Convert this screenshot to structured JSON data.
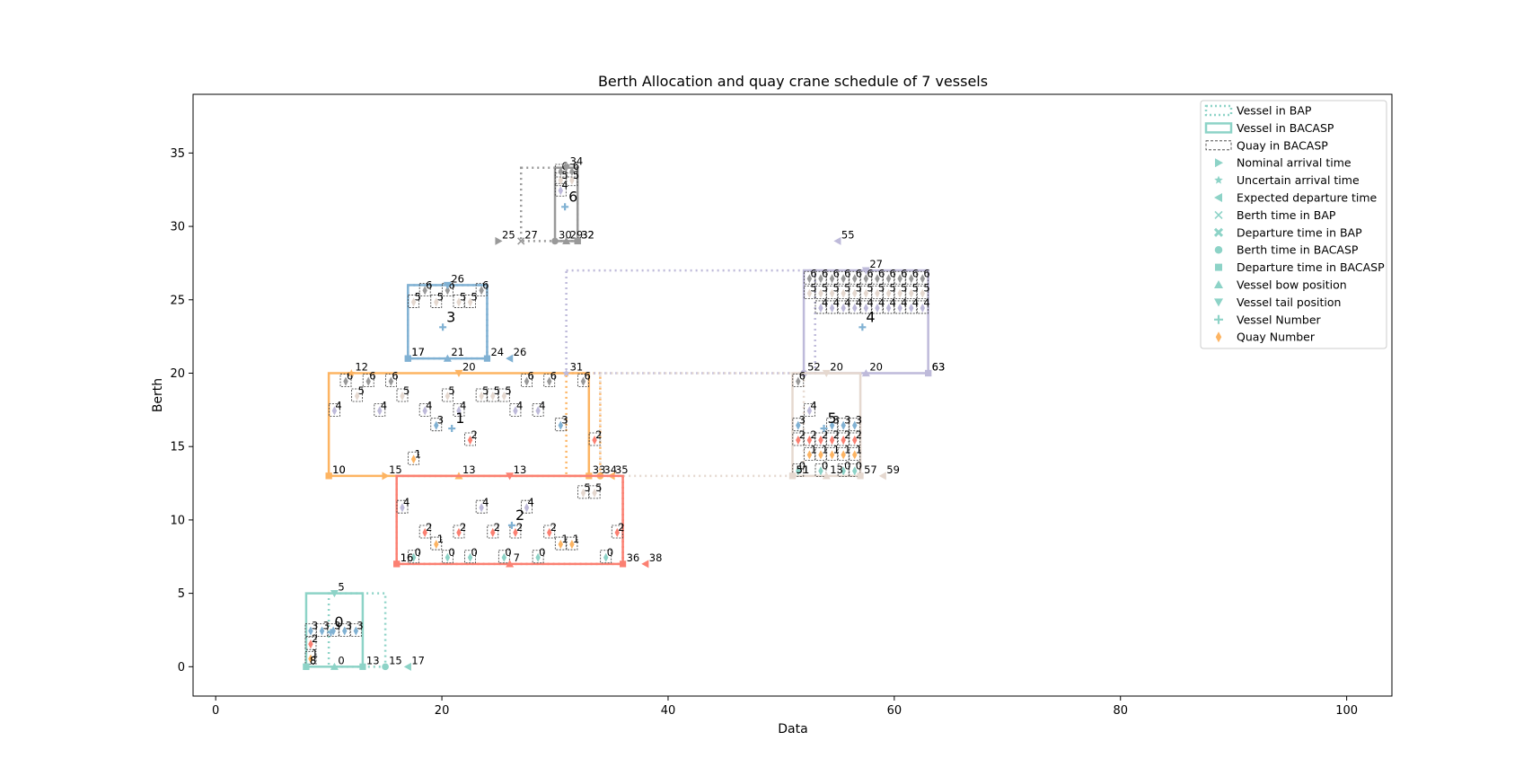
{
  "chart_data": {
    "type": "scatter",
    "title": "Berth Allocation and quay crane schedule  of 7 vessels",
    "xlabel": "Data",
    "ylabel": "Berth",
    "xlim": [
      -2,
      104
    ],
    "ylim": [
      -2,
      39
    ],
    "xticks": [
      0,
      20,
      40,
      60,
      80,
      100
    ],
    "yticks": [
      0,
      5,
      10,
      15,
      20,
      25,
      30,
      35
    ],
    "grid": false,
    "legend_position": "top-right",
    "legend": [
      {
        "label": "Vessel in BAP",
        "marker": "dotted-line"
      },
      {
        "label": "Vessel in BACASP",
        "marker": "solid-box"
      },
      {
        "label": "Quay in BACASP",
        "marker": "dashed-box"
      },
      {
        "label": "Nominal arrival time",
        "marker": "triangle-right"
      },
      {
        "label": "Uncertain arrival time",
        "marker": "star"
      },
      {
        "label": "Expected departure time",
        "marker": "triangle-left"
      },
      {
        "label": "Berth time in BAP",
        "marker": "x"
      },
      {
        "label": "Departure time in BAP",
        "marker": "x-filled"
      },
      {
        "label": "Berth time in BACASP",
        "marker": "circle"
      },
      {
        "label": "Departure time in BACASP",
        "marker": "square"
      },
      {
        "label": "Vessel bow position",
        "marker": "triangle-up"
      },
      {
        "label": "Vessel tail position",
        "marker": "triangle-down"
      },
      {
        "label": "Vessel Number",
        "marker": "plus"
      },
      {
        "label": "Quay Number",
        "marker": "diamond"
      }
    ],
    "legend_marker_color": "#8dd3c7",
    "legend_diamond_color": "#fdb462",
    "vessel_colors": [
      "#8dd3c7",
      "#fdb462",
      "#fb8072",
      "#80b1d3",
      "#bebada",
      "#e5d8cf",
      "#999999"
    ],
    "quay_colors": [
      "#8dd3c7",
      "#fdb462",
      "#fb8072",
      "#80b1d3",
      "#bebada",
      "#e5d8cf",
      "#999999"
    ],
    "vessels": [
      {
        "id": "0",
        "bap": [
          10,
          0,
          15,
          5
        ],
        "bacasp": [
          8,
          0,
          13,
          5
        ],
        "label_pos": [
          10.5,
          2.7
        ],
        "quay_cells": [
          [
            8.4,
            0.6,
            1
          ],
          [
            8.4,
            1.6,
            2
          ],
          [
            8.4,
            2.5,
            3
          ],
          [
            9.4,
            2.5,
            3
          ],
          [
            10.4,
            2.5,
            3
          ],
          [
            11.4,
            2.5,
            3
          ],
          [
            12.4,
            2.5,
            3
          ]
        ],
        "events": [
          {
            "shape": "square",
            "x": 8,
            "y": 0,
            "label": "8"
          },
          {
            "shape": "square",
            "x": 8,
            "y": 0,
            "label": "8"
          },
          {
            "shape": "tri-up",
            "x": 10.5,
            "y": 0,
            "label": "0"
          },
          {
            "shape": "square",
            "x": 13,
            "y": 0,
            "label": "13"
          },
          {
            "shape": "circle",
            "x": 15,
            "y": 0,
            "label": "15"
          },
          {
            "shape": "tri-left",
            "x": 17,
            "y": 0,
            "label": "17"
          },
          {
            "shape": "tri-down",
            "x": 10.5,
            "y": 5,
            "label": "5"
          }
        ]
      },
      {
        "id": "1",
        "bap": [
          31,
          13,
          34,
          20
        ],
        "bacasp": [
          10,
          13,
          33,
          20
        ],
        "label_pos": [
          21.2,
          16.6
        ],
        "quay_cells": [
          [
            17.5,
            14.2,
            1
          ],
          [
            22.5,
            15.5,
            2
          ],
          [
            33.5,
            15.5,
            2
          ],
          [
            19.5,
            16.5,
            3
          ],
          [
            30.5,
            16.5,
            3
          ],
          [
            10.5,
            17.5,
            4
          ],
          [
            14.5,
            17.5,
            4
          ],
          [
            18.5,
            17.5,
            4
          ],
          [
            21.5,
            17.5,
            4
          ],
          [
            26.5,
            17.5,
            4
          ],
          [
            28.5,
            17.5,
            4
          ],
          [
            12.5,
            18.5,
            5
          ],
          [
            16.5,
            18.5,
            5
          ],
          [
            20.5,
            18.5,
            5
          ],
          [
            23.5,
            18.5,
            5
          ],
          [
            24.5,
            18.5,
            5
          ],
          [
            25.5,
            18.5,
            5
          ],
          [
            11.5,
            19.5,
            6
          ],
          [
            13.5,
            19.5,
            6
          ],
          [
            15.5,
            19.5,
            6
          ],
          [
            27.5,
            19.5,
            6
          ],
          [
            29.5,
            19.5,
            6
          ],
          [
            32.5,
            19.5,
            6
          ]
        ],
        "events": [
          {
            "shape": "square",
            "x": 10,
            "y": 13,
            "label": "10"
          },
          {
            "shape": "square",
            "x": 10,
            "y": 13,
            "label": "10"
          },
          {
            "shape": "tri-right",
            "x": 15,
            "y": 13,
            "label": "15"
          },
          {
            "shape": "tri-up",
            "x": 21.5,
            "y": 13,
            "label": "13"
          },
          {
            "shape": "square",
            "x": 33,
            "y": 13,
            "label": "33"
          },
          {
            "shape": "circle",
            "x": 34,
            "y": 13,
            "label": "34"
          },
          {
            "shape": "tri-left",
            "x": 35,
            "y": 13,
            "label": "35"
          },
          {
            "shape": "tri-down",
            "x": 21.5,
            "y": 20,
            "label": "20"
          },
          {
            "shape": "star",
            "x": 12,
            "y": 20,
            "label": "12"
          }
        ]
      },
      {
        "id": "2",
        "bap": [
          16,
          7,
          36,
          13
        ],
        "bacasp": [
          16,
          7,
          36,
          13
        ],
        "label_pos": [
          26.5,
          10
        ],
        "quay_cells": [
          [
            17.5,
            7.5,
            0
          ],
          [
            20.5,
            7.5,
            0
          ],
          [
            22.5,
            7.5,
            0
          ],
          [
            25.5,
            7.5,
            0
          ],
          [
            28.5,
            7.5,
            0
          ],
          [
            34.5,
            7.5,
            0
          ],
          [
            19.5,
            8.4,
            1
          ],
          [
            30.5,
            8.4,
            1
          ],
          [
            31.5,
            8.4,
            1
          ],
          [
            18.5,
            9.2,
            2
          ],
          [
            21.5,
            9.2,
            2
          ],
          [
            24.5,
            9.2,
            2
          ],
          [
            26.5,
            9.2,
            2
          ],
          [
            29.5,
            9.2,
            2
          ],
          [
            35.5,
            9.2,
            2
          ],
          [
            16.5,
            10.9,
            4
          ],
          [
            23.5,
            10.9,
            4
          ],
          [
            27.5,
            10.9,
            4
          ],
          [
            32.5,
            11.9,
            5
          ],
          [
            33.5,
            11.9,
            5
          ]
        ],
        "events": [
          {
            "shape": "square",
            "x": 16,
            "y": 7,
            "label": "16"
          },
          {
            "shape": "square",
            "x": 16,
            "y": 7,
            "label": "16"
          },
          {
            "shape": "tri-up",
            "x": 26,
            "y": 7,
            "label": "7"
          },
          {
            "shape": "square",
            "x": 36,
            "y": 7,
            "label": "36"
          },
          {
            "shape": "tri-left",
            "x": 38,
            "y": 7,
            "label": "38"
          },
          {
            "shape": "tri-down",
            "x": 26,
            "y": 13,
            "label": "13"
          }
        ]
      },
      {
        "id": "3",
        "bap": [
          17,
          21,
          24,
          26
        ],
        "bacasp": [
          17,
          21,
          24,
          26
        ],
        "label_pos": [
          20.4,
          23.5
        ],
        "quay_cells": [
          [
            17.5,
            24.9,
            5
          ],
          [
            19.5,
            24.9,
            5
          ],
          [
            21.5,
            24.9,
            5
          ],
          [
            22.5,
            24.9,
            5
          ],
          [
            18.5,
            25.7,
            6
          ],
          [
            20.5,
            25.7,
            6
          ],
          [
            23.5,
            25.7,
            6
          ]
        ],
        "events": [
          {
            "shape": "square",
            "x": 17,
            "y": 21,
            "label": "17"
          },
          {
            "shape": "square",
            "x": 17,
            "y": 21,
            "label": "17"
          },
          {
            "shape": "tri-up",
            "x": 20.5,
            "y": 21,
            "label": "21"
          },
          {
            "shape": "square",
            "x": 24,
            "y": 21,
            "label": "24"
          },
          {
            "shape": "tri-left",
            "x": 26,
            "y": 21,
            "label": "26"
          },
          {
            "shape": "tri-down",
            "x": 20.5,
            "y": 26,
            "label": "26"
          }
        ]
      },
      {
        "id": "4",
        "bap": [
          31,
          20,
          53,
          27
        ],
        "bacasp": [
          52,
          20,
          63,
          27
        ],
        "label_pos": [
          57.5,
          23.5
        ],
        "quay_cells": [
          [
            53.5,
            24.5,
            4
          ],
          [
            54.5,
            24.5,
            4
          ],
          [
            55.5,
            24.5,
            4
          ],
          [
            56.5,
            24.5,
            4
          ],
          [
            57.5,
            24.5,
            4
          ],
          [
            58.5,
            24.5,
            4
          ],
          [
            59.5,
            24.5,
            4
          ],
          [
            60.5,
            24.5,
            4
          ],
          [
            61.5,
            24.5,
            4
          ],
          [
            62.5,
            24.5,
            4
          ],
          [
            52.5,
            25.5,
            5
          ],
          [
            53.5,
            25.5,
            5
          ],
          [
            54.5,
            25.5,
            5
          ],
          [
            55.5,
            25.5,
            5
          ],
          [
            56.5,
            25.5,
            5
          ],
          [
            57.5,
            25.5,
            5
          ],
          [
            58.5,
            25.5,
            5
          ],
          [
            59.5,
            25.5,
            5
          ],
          [
            60.5,
            25.5,
            5
          ],
          [
            61.5,
            25.5,
            5
          ],
          [
            62.5,
            25.5,
            5
          ],
          [
            52.5,
            26.5,
            6
          ],
          [
            53.5,
            26.5,
            6
          ],
          [
            54.5,
            26.5,
            6
          ],
          [
            55.5,
            26.5,
            6
          ],
          [
            56.5,
            26.5,
            6
          ],
          [
            57.5,
            26.5,
            6
          ],
          [
            58.5,
            26.5,
            6
          ],
          [
            59.5,
            26.5,
            6
          ],
          [
            60.5,
            26.5,
            6
          ],
          [
            61.5,
            26.5,
            6
          ],
          [
            62.5,
            26.5,
            6
          ]
        ],
        "events": [
          {
            "shape": "circle",
            "x": 52,
            "y": 20,
            "label": "52"
          },
          {
            "shape": "tri-up",
            "x": 57.5,
            "y": 20,
            "label": "20"
          },
          {
            "shape": "square",
            "x": 63,
            "y": 20,
            "label": "63"
          },
          {
            "shape": "square",
            "x": 63,
            "y": 20,
            "label": "63"
          },
          {
            "shape": "tri-down",
            "x": 57.5,
            "y": 27,
            "label": "27"
          },
          {
            "shape": "star",
            "x": 31,
            "y": 20,
            "label": "31"
          },
          {
            "shape": "tri-left",
            "x": 55,
            "y": 29,
            "label": "55"
          }
        ]
      },
      {
        "id": "5",
        "bap": [
          34,
          13,
          52,
          20
        ],
        "bacasp": [
          51,
          13,
          57,
          20
        ],
        "label_pos": [
          54.1,
          16.6
        ],
        "quay_cells": [
          [
            51.5,
            13.4,
            0
          ],
          [
            53.5,
            13.4,
            0
          ],
          [
            55.5,
            13.4,
            0
          ],
          [
            56.5,
            13.4,
            0
          ],
          [
            52.5,
            14.5,
            1
          ],
          [
            53.5,
            14.5,
            1
          ],
          [
            54.5,
            14.5,
            1
          ],
          [
            55.5,
            14.5,
            1
          ],
          [
            56.5,
            14.5,
            1
          ],
          [
            51.5,
            15.5,
            2
          ],
          [
            52.5,
            15.5,
            2
          ],
          [
            53.5,
            15.5,
            2
          ],
          [
            54.5,
            15.5,
            2
          ],
          [
            55.5,
            15.5,
            2
          ],
          [
            56.5,
            15.5,
            2
          ],
          [
            51.5,
            16.5,
            3
          ],
          [
            54.5,
            16.5,
            3
          ],
          [
            55.5,
            16.5,
            3
          ],
          [
            56.5,
            16.5,
            3
          ],
          [
            52.5,
            17.5,
            4
          ],
          [
            51.5,
            19.5,
            6
          ]
        ],
        "events": [
          {
            "shape": "square",
            "x": 51,
            "y": 13,
            "label": "51"
          },
          {
            "shape": "square",
            "x": 51,
            "y": 13,
            "label": "51"
          },
          {
            "shape": "tri-up",
            "x": 54,
            "y": 13,
            "label": "13"
          },
          {
            "shape": "square",
            "x": 57,
            "y": 13,
            "label": "57"
          },
          {
            "shape": "tri-left",
            "x": 59,
            "y": 13,
            "label": "59"
          },
          {
            "shape": "tri-down",
            "x": 54,
            "y": 20,
            "label": "20"
          }
        ]
      },
      {
        "id": "6",
        "bap": [
          27,
          29,
          32,
          34
        ],
        "bacasp": [
          30,
          29,
          32,
          34
        ],
        "label_pos": [
          31.2,
          31.7
        ],
        "quay_cells": [
          [
            30.5,
            32.5,
            4
          ],
          [
            30.5,
            33.2,
            5
          ],
          [
            31.5,
            33.2,
            5
          ],
          [
            30.5,
            33.8,
            6
          ],
          [
            31.5,
            33.8,
            6
          ]
        ],
        "events": [
          {
            "shape": "tri-right",
            "x": 25,
            "y": 29,
            "label": "25"
          },
          {
            "shape": "x",
            "x": 27,
            "y": 29,
            "label": "27"
          },
          {
            "shape": "circle",
            "x": 30,
            "y": 29,
            "label": "30"
          },
          {
            "shape": "tri-up",
            "x": 31,
            "y": 29,
            "label": "29"
          },
          {
            "shape": "square",
            "x": 32,
            "y": 29,
            "label": "32"
          },
          {
            "shape": "square",
            "x": 32,
            "y": 29,
            "label": "32"
          },
          {
            "shape": "tri-down",
            "x": 31,
            "y": 34,
            "label": "34"
          }
        ]
      }
    ]
  }
}
